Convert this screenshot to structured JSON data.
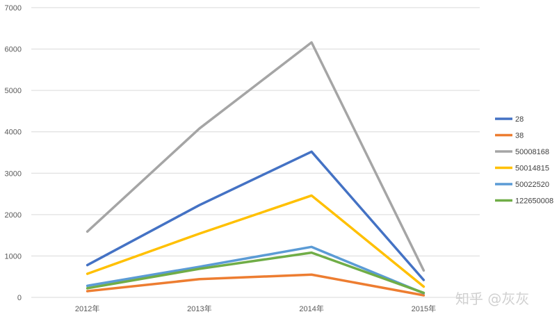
{
  "chart_data": {
    "type": "line",
    "categories": [
      "2012年",
      "2013年",
      "2014年",
      "2015年"
    ],
    "ylim": [
      0,
      7000
    ],
    "yticks": [
      0,
      1000,
      2000,
      3000,
      4000,
      5000,
      6000,
      7000
    ],
    "grid": true,
    "legend_position": "right",
    "series": [
      {
        "name": "28",
        "color": "#4472c4",
        "values": [
          780,
          2230,
          3520,
          420
        ]
      },
      {
        "name": "38",
        "color": "#ed7d31",
        "values": [
          150,
          440,
          550,
          50
        ]
      },
      {
        "name": "50008168",
        "color": "#a5a5a5",
        "values": [
          1590,
          4080,
          6160,
          650
        ]
      },
      {
        "name": "50014815",
        "color": "#ffc000",
        "values": [
          570,
          1540,
          2460,
          260
        ]
      },
      {
        "name": "50022520",
        "color": "#5b9bd5",
        "values": [
          280,
          740,
          1220,
          100
        ]
      },
      {
        "name": "122650008",
        "color": "#70ad47",
        "values": [
          220,
          690,
          1080,
          110
        ]
      }
    ]
  },
  "watermark": "知乎 @灰灰"
}
